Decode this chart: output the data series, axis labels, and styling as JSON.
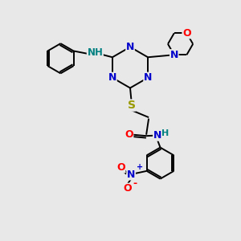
{
  "bg_color": "#e8e8e8",
  "atom_colors": {
    "N": "#0000cc",
    "O": "#ff0000",
    "S": "#999900",
    "C": "#000000",
    "H_label": "#008080"
  },
  "bond_color": "#000000",
  "lw": 1.4,
  "fs": 8.5
}
